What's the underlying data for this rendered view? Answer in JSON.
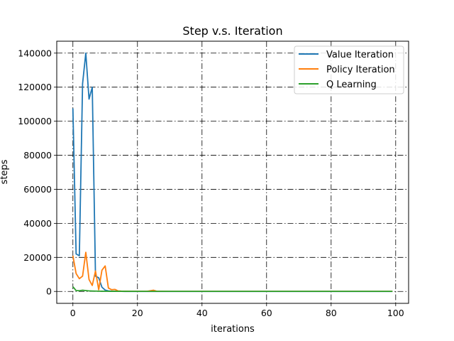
{
  "chart_data": {
    "type": "line",
    "title": "Step v.s. Iteration",
    "xlabel": "iterations",
    "ylabel": "steps",
    "xlim": [
      -5,
      104
    ],
    "ylim": [
      -7000,
      147000
    ],
    "x_ticks": [
      0,
      20,
      40,
      60,
      80,
      100
    ],
    "y_ticks": [
      0,
      20000,
      40000,
      60000,
      80000,
      100000,
      120000,
      140000
    ],
    "grid": true,
    "grid_style": "dashdot",
    "legend_position": "upper right",
    "series": [
      {
        "name": "Value Iteration",
        "color": "#1f77b4",
        "points": [
          [
            0,
            107500
          ],
          [
            1,
            22000
          ],
          [
            2,
            21000
          ],
          [
            3,
            122000
          ],
          [
            4,
            140000
          ],
          [
            5,
            113000
          ],
          [
            6,
            120000
          ],
          [
            7,
            9000
          ],
          [
            8,
            8000
          ],
          [
            9,
            2500
          ],
          [
            10,
            800
          ],
          [
            11,
            300
          ],
          [
            12,
            150
          ],
          [
            13,
            80
          ],
          [
            14,
            50
          ],
          [
            15,
            30
          ],
          [
            16,
            20
          ],
          [
            17,
            15
          ],
          [
            18,
            10
          ],
          [
            20,
            8
          ],
          [
            25,
            5
          ],
          [
            30,
            5
          ],
          [
            40,
            5
          ],
          [
            50,
            5
          ],
          [
            60,
            5
          ],
          [
            70,
            5
          ],
          [
            80,
            5
          ],
          [
            90,
            5
          ],
          [
            99,
            5
          ]
        ]
      },
      {
        "name": "Policy Iteration",
        "color": "#ff7f0e",
        "points": [
          [
            0,
            21000
          ],
          [
            1,
            10500
          ],
          [
            2,
            7500
          ],
          [
            3,
            9000
          ],
          [
            4,
            23000
          ],
          [
            5,
            7000
          ],
          [
            6,
            3500
          ],
          [
            7,
            12000
          ],
          [
            8,
            1000
          ],
          [
            9,
            12500
          ],
          [
            10,
            15000
          ],
          [
            11,
            2000
          ],
          [
            12,
            1000
          ],
          [
            13,
            1200
          ],
          [
            14,
            300
          ],
          [
            15,
            200
          ],
          [
            16,
            150
          ],
          [
            17,
            120
          ],
          [
            18,
            100
          ],
          [
            19,
            80
          ],
          [
            20,
            60
          ],
          [
            21,
            80
          ],
          [
            22,
            60
          ],
          [
            23,
            100
          ],
          [
            24,
            400
          ],
          [
            25,
            700
          ],
          [
            26,
            100
          ],
          [
            27,
            60
          ],
          [
            30,
            40
          ],
          [
            40,
            30
          ],
          [
            50,
            30
          ],
          [
            60,
            30
          ],
          [
            70,
            30
          ],
          [
            80,
            30
          ],
          [
            90,
            30
          ],
          [
            99,
            30
          ]
        ]
      },
      {
        "name": "Q Learning",
        "color": "#2ca02c",
        "points": [
          [
            0,
            2800
          ],
          [
            1,
            500
          ],
          [
            2,
            400
          ],
          [
            3,
            700
          ],
          [
            4,
            500
          ],
          [
            5,
            300
          ],
          [
            6,
            250
          ],
          [
            7,
            200
          ],
          [
            8,
            150
          ],
          [
            9,
            120
          ],
          [
            10,
            100
          ],
          [
            12,
            80
          ],
          [
            15,
            60
          ],
          [
            20,
            50
          ],
          [
            25,
            40
          ],
          [
            30,
            40
          ],
          [
            40,
            40
          ],
          [
            50,
            40
          ],
          [
            60,
            40
          ],
          [
            70,
            40
          ],
          [
            80,
            40
          ],
          [
            90,
            40
          ],
          [
            99,
            40
          ]
        ]
      }
    ]
  }
}
